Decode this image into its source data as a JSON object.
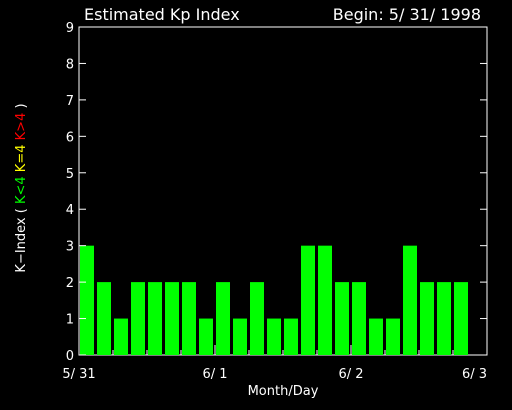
{
  "header": {
    "title": "Estimated Kp Index",
    "begin": "Begin: 5/ 31/ 1998"
  },
  "chart_data": {
    "type": "bar",
    "title": "Estimated Kp Index",
    "xlabel": "Month/Day",
    "ylabel_parts": [
      {
        "text": "K−Index ( ",
        "color": "#ffffff"
      },
      {
        "text": "K<4",
        "color": "#00ff00"
      },
      {
        "text": " ",
        "color": "#ffffff"
      },
      {
        "text": "K=4",
        "color": "#ffff00"
      },
      {
        "text": " ",
        "color": "#ffffff"
      },
      {
        "text": "K>4",
        "color": "#ff0000"
      },
      {
        "text": " )",
        "color": "#ffffff"
      }
    ],
    "ylim": [
      0,
      9
    ],
    "yticks": [
      "0",
      "1",
      "2",
      "3",
      "4",
      "5",
      "6",
      "7",
      "8",
      "9"
    ],
    "xlim_hours": [
      0,
      72
    ],
    "xticks": [
      {
        "hour": 0,
        "label": "5/ 31"
      },
      {
        "hour": 24,
        "label": "6/ 1"
      },
      {
        "hour": 48,
        "label": "6/ 2"
      },
      {
        "hour": 72,
        "label": "6/ 3"
      }
    ],
    "interval_hours": 3,
    "values": [
      3,
      2,
      1,
      2,
      2,
      2,
      2,
      1,
      2,
      1,
      2,
      1,
      1,
      3,
      3,
      2,
      2,
      1,
      1,
      3,
      2,
      2,
      2
    ],
    "colors": {
      "low": "#00ff00",
      "equal": "#ffff00",
      "high": "#ff0000",
      "axis": "#ffffff",
      "background": "#000000"
    }
  }
}
